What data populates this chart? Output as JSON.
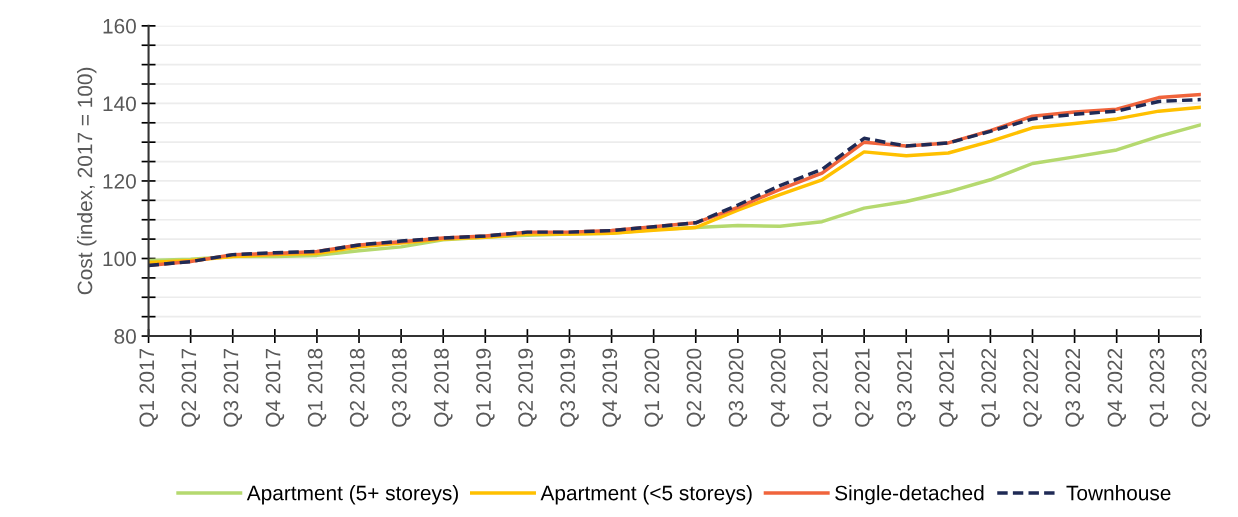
{
  "chart_data": {
    "type": "line",
    "ylabel": "Cost (index, 2017 = 100)",
    "categories": [
      "Q1 2017",
      "Q2 2017",
      "Q3 2017",
      "Q4 2017",
      "Q1 2018",
      "Q2 2018",
      "Q3 2018",
      "Q4 2018",
      "Q1 2019",
      "Q2 2019",
      "Q3 2019",
      "Q4 2019",
      "Q1 2020",
      "Q2 2020",
      "Q3 2020",
      "Q4 2020",
      "Q1 2021",
      "Q2 2021",
      "Q3 2021",
      "Q4 2021",
      "Q1 2022",
      "Q2 2022",
      "Q3 2022",
      "Q4 2022",
      "Q1 2023",
      "Q2 2023"
    ],
    "series": [
      {
        "name": "Apartment (5+ storeys)",
        "color": "#b5d96f",
        "values": [
          99.5,
          99.8,
          100.5,
          100.5,
          100.8,
          102,
          103,
          104.8,
          105.5,
          106,
          106.3,
          106.5,
          107.5,
          108,
          108.5,
          108.3,
          109.5,
          113,
          114.7,
          117.2,
          120.3,
          124.5,
          126.2,
          128,
          131.5,
          134.5
        ]
      },
      {
        "name": "Apartment (<5 storeys)",
        "color": "#ffc000",
        "values": [
          99,
          99.5,
          100.5,
          101,
          101.3,
          103,
          104,
          105,
          105.5,
          106.3,
          106.3,
          106.5,
          107.3,
          108,
          112.5,
          116.5,
          120.3,
          127.5,
          126.5,
          127.2,
          130.2,
          133.7,
          134.8,
          136,
          138,
          139
        ]
      },
      {
        "name": "Single-detached",
        "color": "#f0643c",
        "values": [
          98.2,
          99.2,
          101,
          101.3,
          101.8,
          103.5,
          104.3,
          105.3,
          105.8,
          106.8,
          106.8,
          107.2,
          108.2,
          109.2,
          113.2,
          117.8,
          122,
          130,
          129,
          129.8,
          133,
          136.7,
          137.8,
          138.5,
          141.5,
          142.3
        ]
      },
      {
        "name": "Townhouse",
        "color": "#1f2a55",
        "line_style": "dashed",
        "values": [
          98.2,
          99.2,
          101,
          101.5,
          101.8,
          103.5,
          104.5,
          105.3,
          105.8,
          106.8,
          106.8,
          107.2,
          108.2,
          109.2,
          113.8,
          118.8,
          123,
          131,
          129,
          129.8,
          132.8,
          136,
          137.2,
          138,
          140.5,
          141
        ]
      }
    ],
    "ylim": [
      80,
      160
    ],
    "yticks": [
      80,
      100,
      120,
      140,
      160
    ],
    "grid": "y",
    "legend": "bottom",
    "line_style": "solid",
    "marker": "none"
  }
}
